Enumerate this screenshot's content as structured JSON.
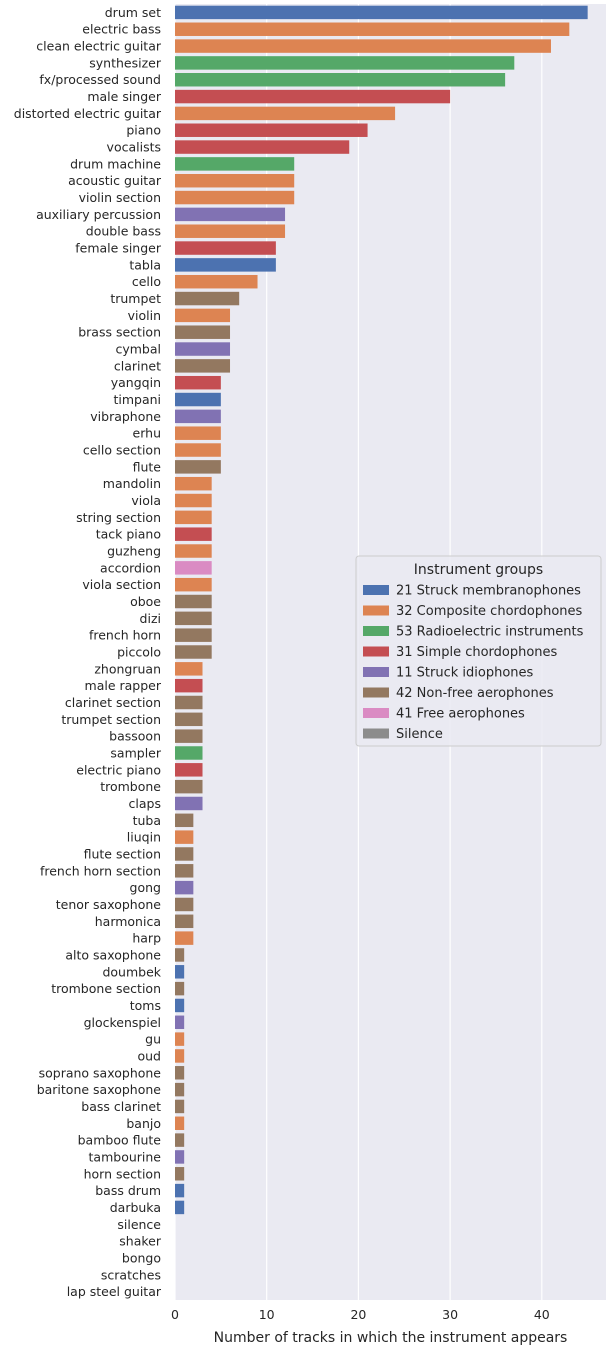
{
  "chart_data": {
    "type": "bar",
    "orientation": "horizontal",
    "xlabel": "Number of tracks in which the instrument appears",
    "ylabel": "",
    "xlim": [
      0,
      47
    ],
    "xticks": [
      0,
      10,
      20,
      30,
      40
    ],
    "grid": true,
    "legend": {
      "title": "Instrument groups",
      "placement": "center-right",
      "entries": [
        {
          "label": "21 Struck membranophones",
          "color": "#4c72b0"
        },
        {
          "label": "32 Composite chordophones",
          "color": "#dd8452"
        },
        {
          "label": "53 Radioelectric instruments",
          "color": "#55a868"
        },
        {
          "label": "31 Simple chordophones",
          "color": "#c44e52"
        },
        {
          "label": "11 Struck idiophones",
          "color": "#8172b3"
        },
        {
          "label": "42 Non-free aerophones",
          "color": "#937860"
        },
        {
          "label": "41 Free aerophones",
          "color": "#da8bc3"
        },
        {
          "label": "Silence",
          "color": "#8c8c8c"
        }
      ]
    },
    "bars": [
      {
        "label": "drum set",
        "value": 45,
        "group": 0
      },
      {
        "label": "electric bass",
        "value": 43,
        "group": 1
      },
      {
        "label": "clean electric guitar",
        "value": 41,
        "group": 1
      },
      {
        "label": "synthesizer",
        "value": 37,
        "group": 2
      },
      {
        "label": "fx/processed sound",
        "value": 36,
        "group": 2
      },
      {
        "label": "male singer",
        "value": 30,
        "group": 3
      },
      {
        "label": "distorted electric guitar",
        "value": 24,
        "group": 1
      },
      {
        "label": "piano",
        "value": 21,
        "group": 3
      },
      {
        "label": "vocalists",
        "value": 19,
        "group": 3
      },
      {
        "label": "drum machine",
        "value": 13,
        "group": 2
      },
      {
        "label": "acoustic guitar",
        "value": 13,
        "group": 1
      },
      {
        "label": "violin section",
        "value": 13,
        "group": 1
      },
      {
        "label": "auxiliary percussion",
        "value": 12,
        "group": 4
      },
      {
        "label": "double bass",
        "value": 12,
        "group": 1
      },
      {
        "label": "female singer",
        "value": 11,
        "group": 3
      },
      {
        "label": "tabla",
        "value": 11,
        "group": 0
      },
      {
        "label": "cello",
        "value": 9,
        "group": 1
      },
      {
        "label": "trumpet",
        "value": 7,
        "group": 5
      },
      {
        "label": "violin",
        "value": 6,
        "group": 1
      },
      {
        "label": "brass section",
        "value": 6,
        "group": 5
      },
      {
        "label": "cymbal",
        "value": 6,
        "group": 4
      },
      {
        "label": "clarinet",
        "value": 6,
        "group": 5
      },
      {
        "label": "yangqin",
        "value": 5,
        "group": 3
      },
      {
        "label": "timpani",
        "value": 5,
        "group": 0
      },
      {
        "label": "vibraphone",
        "value": 5,
        "group": 4
      },
      {
        "label": "erhu",
        "value": 5,
        "group": 1
      },
      {
        "label": "cello section",
        "value": 5,
        "group": 1
      },
      {
        "label": "flute",
        "value": 5,
        "group": 5
      },
      {
        "label": "mandolin",
        "value": 4,
        "group": 1
      },
      {
        "label": "viola",
        "value": 4,
        "group": 1
      },
      {
        "label": "string section",
        "value": 4,
        "group": 1
      },
      {
        "label": "tack piano",
        "value": 4,
        "group": 3
      },
      {
        "label": "guzheng",
        "value": 4,
        "group": 1
      },
      {
        "label": "accordion",
        "value": 4,
        "group": 6
      },
      {
        "label": "viola section",
        "value": 4,
        "group": 1
      },
      {
        "label": "oboe",
        "value": 4,
        "group": 5
      },
      {
        "label": "dizi",
        "value": 4,
        "group": 5
      },
      {
        "label": "french horn",
        "value": 4,
        "group": 5
      },
      {
        "label": "piccolo",
        "value": 4,
        "group": 5
      },
      {
        "label": "zhongruan",
        "value": 3,
        "group": 1
      },
      {
        "label": "male rapper",
        "value": 3,
        "group": 3
      },
      {
        "label": "clarinet section",
        "value": 3,
        "group": 5
      },
      {
        "label": "trumpet section",
        "value": 3,
        "group": 5
      },
      {
        "label": "bassoon",
        "value": 3,
        "group": 5
      },
      {
        "label": "sampler",
        "value": 3,
        "group": 2
      },
      {
        "label": "electric piano",
        "value": 3,
        "group": 3
      },
      {
        "label": "trombone",
        "value": 3,
        "group": 5
      },
      {
        "label": "claps",
        "value": 3,
        "group": 4
      },
      {
        "label": "tuba",
        "value": 2,
        "group": 5
      },
      {
        "label": "liuqin",
        "value": 2,
        "group": 1
      },
      {
        "label": "flute section",
        "value": 2,
        "group": 5
      },
      {
        "label": "french horn section",
        "value": 2,
        "group": 5
      },
      {
        "label": "gong",
        "value": 2,
        "group": 4
      },
      {
        "label": "tenor saxophone",
        "value": 2,
        "group": 5
      },
      {
        "label": "harmonica",
        "value": 2,
        "group": 5
      },
      {
        "label": "harp",
        "value": 2,
        "group": 1
      },
      {
        "label": "alto saxophone",
        "value": 1,
        "group": 5
      },
      {
        "label": "doumbek",
        "value": 1,
        "group": 0
      },
      {
        "label": "trombone section",
        "value": 1,
        "group": 5
      },
      {
        "label": "toms",
        "value": 1,
        "group": 0
      },
      {
        "label": "glockenspiel",
        "value": 1,
        "group": 4
      },
      {
        "label": "gu",
        "value": 1,
        "group": 1
      },
      {
        "label": "oud",
        "value": 1,
        "group": 1
      },
      {
        "label": "soprano saxophone",
        "value": 1,
        "group": 5
      },
      {
        "label": "baritone saxophone",
        "value": 1,
        "group": 5
      },
      {
        "label": "bass clarinet",
        "value": 1,
        "group": 5
      },
      {
        "label": "banjo",
        "value": 1,
        "group": 1
      },
      {
        "label": "bamboo flute",
        "value": 1,
        "group": 5
      },
      {
        "label": "tambourine",
        "value": 1,
        "group": 4
      },
      {
        "label": "horn section",
        "value": 1,
        "group": 5
      },
      {
        "label": "bass drum",
        "value": 1,
        "group": 0
      },
      {
        "label": "darbuka",
        "value": 1,
        "group": 0
      },
      {
        "label": "silence",
        "value": 0,
        "group": 7
      },
      {
        "label": "shaker",
        "value": 0,
        "group": 4
      },
      {
        "label": "bongo",
        "value": 0,
        "group": 0
      },
      {
        "label": "scratches",
        "value": 0,
        "group": 2
      },
      {
        "label": "lap steel guitar",
        "value": 0,
        "group": 1
      }
    ],
    "plot_background": "#eaeaf2",
    "grid_color": "#ffffff"
  }
}
